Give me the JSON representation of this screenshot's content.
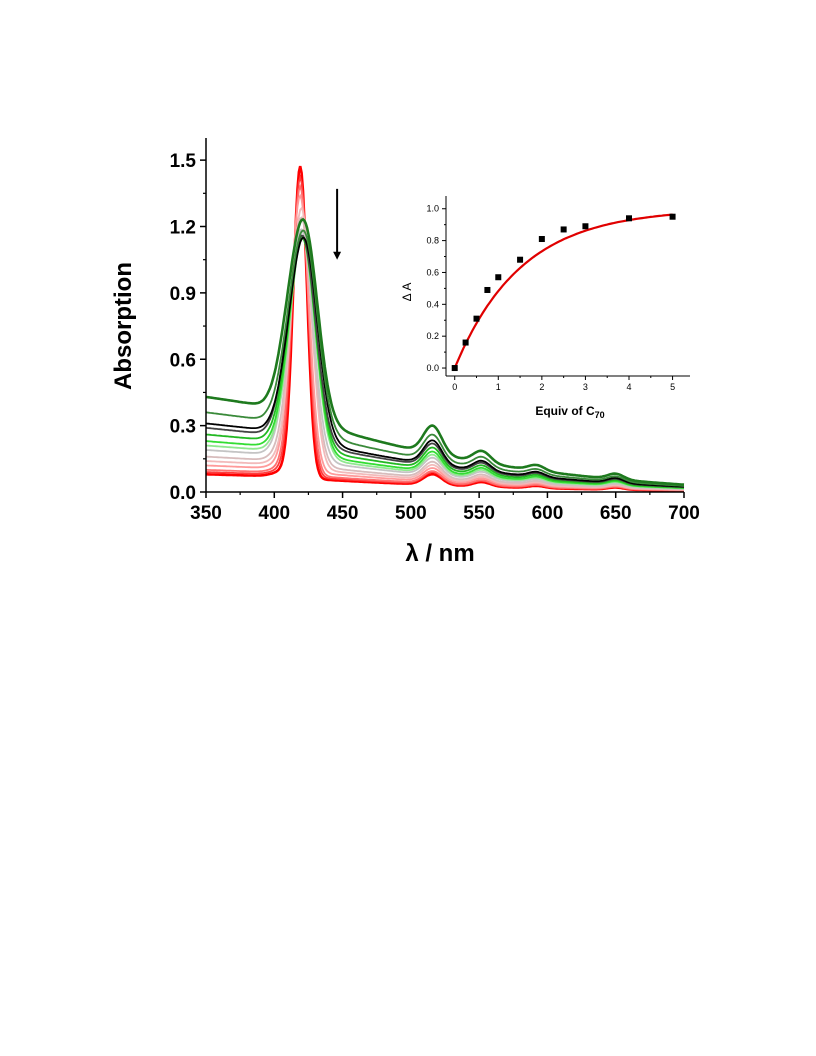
{
  "chart_data": [
    {
      "type": "line",
      "xlabel": "λ / nm",
      "ylabel": "Absorption",
      "xlim": [
        350,
        700
      ],
      "ylim": [
        0,
        1.6
      ],
      "x_ticks": [
        "350",
        "400",
        "450",
        "500",
        "550",
        "600",
        "650",
        "700"
      ],
      "y_ticks": [
        "0.0",
        "0.3",
        "0.6",
        "0.9",
        "1.2",
        "1.5"
      ],
      "arrow": {
        "x": 446,
        "y_from": 1.37,
        "y_to": 1.05,
        "direction": "down"
      },
      "series": [
        {
          "color": "#ff0000",
          "peak": 1.4,
          "peak_x": 419,
          "baseline": 0.08,
          "q_band": 0.08
        },
        {
          "color": "#ff3c3c",
          "peak": 1.34,
          "peak_x": 419,
          "baseline": 0.09,
          "q_band": 0.09
        },
        {
          "color": "#ff7070",
          "peak": 1.29,
          "peak_x": 419,
          "baseline": 0.1,
          "q_band": 0.09
        },
        {
          "color": "#ff9a9a",
          "peak": 1.23,
          "peak_x": 419,
          "baseline": 0.12,
          "q_band": 0.1
        },
        {
          "color": "#f2baba",
          "peak": 1.16,
          "peak_x": 420,
          "baseline": 0.14,
          "q_band": 0.11
        },
        {
          "color": "#d7bcbc",
          "peak": 1.1,
          "peak_x": 420,
          "baseline": 0.16,
          "q_band": 0.12
        },
        {
          "color": "#c4c4c4",
          "peak": 1.02,
          "peak_x": 420,
          "baseline": 0.19,
          "q_band": 0.13
        },
        {
          "color": "#90e890",
          "peak": 0.97,
          "peak_x": 421,
          "baseline": 0.21,
          "q_band": 0.14
        },
        {
          "color": "#33dd33",
          "peak": 0.95,
          "peak_x": 421,
          "baseline": 0.23,
          "q_band": 0.15
        },
        {
          "color": "#22b822",
          "peak": 0.93,
          "peak_x": 421,
          "baseline": 0.26,
          "q_band": 0.16
        },
        {
          "color": "#444444",
          "peak": 0.91,
          "peak_x": 421,
          "baseline": 0.29,
          "q_band": 0.17
        },
        {
          "color": "#000000",
          "peak": 0.89,
          "peak_x": 422,
          "baseline": 0.31,
          "q_band": 0.18
        },
        {
          "color": "#3a8a3a",
          "peak": 0.88,
          "peak_x": 422,
          "baseline": 0.36,
          "q_band": 0.19
        },
        {
          "color": "#1e7a1e",
          "peak": 0.87,
          "peak_x": 422,
          "baseline": 0.43,
          "q_band": 0.21
        }
      ]
    },
    {
      "type": "scatter",
      "xlabel": "Equiv of C",
      "xlabel_sub": "70",
      "ylabel": "Δ A",
      "xlim": [
        -0.2,
        5.4
      ],
      "ylim": [
        -0.05,
        1.08
      ],
      "x_ticks": [
        "0",
        "1",
        "2",
        "3",
        "4",
        "5"
      ],
      "y_ticks": [
        "0.0",
        "0.2",
        "0.4",
        "0.6",
        "0.8",
        "1.0"
      ],
      "x": [
        0,
        0.25,
        0.5,
        0.75,
        1.0,
        1.5,
        2.0,
        2.5,
        3.0,
        4.0,
        5.0
      ],
      "y": [
        0.0,
        0.16,
        0.31,
        0.49,
        0.57,
        0.68,
        0.81,
        0.87,
        0.89,
        0.94,
        0.95
      ],
      "fit": {
        "color": "#e00000",
        "a": 1.0,
        "k": 0.66
      }
    }
  ]
}
